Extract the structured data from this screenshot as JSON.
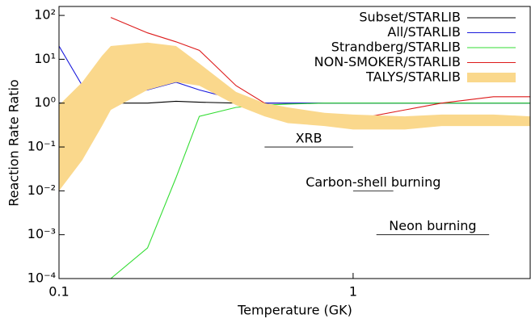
{
  "chart_data": {
    "type": "line",
    "x_label": "Temperature (GK)",
    "y_label": "Reaction Rate Ratio",
    "x_log": true,
    "y_log": true,
    "legend": "upper right",
    "xlim": [
      0.1,
      4
    ],
    "xticks": [
      0.1,
      1
    ],
    "ylim": [
      0.0001,
      160
    ],
    "yticks": [
      {
        "value": 0.0001,
        "label": "10⁻⁴"
      },
      {
        "value": 0.001,
        "label": "10⁻³"
      },
      {
        "value": 0.01,
        "label": "10⁻²"
      },
      {
        "value": 0.1,
        "label": "10⁻¹"
      },
      {
        "value": 1,
        "label": "10⁰"
      },
      {
        "value": 10,
        "label": "10¹"
      },
      {
        "value": 100,
        "label": "10²"
      }
    ],
    "x": [
      0.1,
      0.12,
      0.14,
      0.15,
      0.2,
      0.25,
      0.3,
      0.4,
      0.5,
      0.6,
      0.8,
      1,
      1.5,
      2,
      3,
      4
    ],
    "series": [
      {
        "name": "Subset/STARLIB",
        "color": "#000000",
        "values": [
          1,
          1,
          1,
          1,
          1,
          1.1,
          1.05,
          1,
          1,
          1,
          1,
          1,
          1,
          1,
          1,
          1
        ]
      },
      {
        "name": "All/STARLIB",
        "color": "#1a1adc",
        "values": [
          20,
          2.5,
          1.3,
          1.35,
          2,
          3,
          2,
          1.2,
          1,
          1,
          1,
          1,
          1,
          1,
          1,
          1
        ]
      },
      {
        "name": "Strandberg/STARLIB",
        "color": "#33dd33",
        "values": [
          null,
          null,
          null,
          0.0001,
          0.0005,
          0.02,
          0.5,
          0.8,
          0.9,
          0.95,
          1,
          1,
          1,
          1,
          1,
          1
        ]
      },
      {
        "name": "NON-SMOKER/STARLIB",
        "color": "#dd1a1a",
        "values": [
          null,
          null,
          null,
          90,
          40,
          25,
          16,
          2.5,
          1,
          0.5,
          0.4,
          0.42,
          0.7,
          1,
          1.4,
          1.4
        ]
      },
      {
        "name": "TALYS/STARLIB",
        "color": "#fad88c",
        "band": true,
        "lower": [
          0.01,
          0.05,
          0.3,
          0.7,
          2,
          3,
          2.5,
          0.9,
          0.5,
          0.35,
          0.3,
          0.25,
          0.25,
          0.3,
          0.3,
          0.3
        ],
        "upper": [
          0.9,
          3,
          12,
          20,
          24,
          20,
          8,
          1.8,
          1,
          0.8,
          0.6,
          0.55,
          0.5,
          0.55,
          0.55,
          0.5
        ]
      }
    ],
    "annotations": [
      {
        "text": "XRB",
        "range": [
          0.5,
          1
        ],
        "level": 0.1
      },
      {
        "text": "Carbon-shell burning",
        "range": [
          1,
          1.37
        ],
        "level": 0.01
      },
      {
        "text": "Neon burning",
        "range": [
          1.2,
          2.9
        ],
        "level": 0.001
      }
    ]
  }
}
